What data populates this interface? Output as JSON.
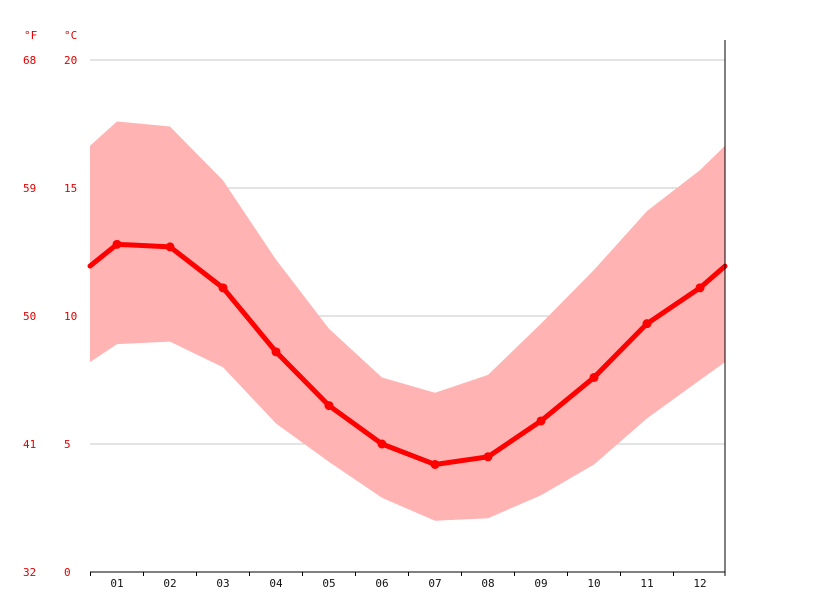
{
  "colors": {
    "temperature_line": "#ff0000",
    "range_band": "#ffb3b3",
    "gridline": "#c8c8c8",
    "axis": "#000000",
    "axis_text": "#e00000",
    "month_text": "#111111"
  },
  "chart_data": {
    "type": "line",
    "title": "",
    "xlabel": "",
    "ylabel": "",
    "unit_f": "°F",
    "unit_c": "°C",
    "categories": [
      "01",
      "02",
      "03",
      "04",
      "05",
      "06",
      "07",
      "08",
      "09",
      "10",
      "11",
      "12"
    ],
    "ylim": [
      0,
      20
    ],
    "grid": true,
    "yticks_c": [
      "0",
      "5",
      "10",
      "15",
      "20"
    ],
    "yticks_f": [
      "32",
      "41",
      "50",
      "59",
      "68"
    ],
    "series": [
      {
        "kind": "line",
        "values": [
          12.8,
          12.7,
          11.1,
          8.6,
          6.5,
          5.0,
          4.2,
          4.5,
          5.9,
          7.6,
          9.7,
          11.1
        ]
      },
      {
        "kind": "band-max",
        "values": [
          17.6,
          17.4,
          15.3,
          12.2,
          9.5,
          7.6,
          7.0,
          7.7,
          9.7,
          11.8,
          14.1,
          15.7
        ]
      },
      {
        "kind": "band-min",
        "values": [
          8.9,
          9.0,
          8.0,
          5.8,
          4.3,
          2.9,
          2.0,
          2.1,
          3.0,
          4.2,
          6.0,
          7.5
        ]
      }
    ]
  }
}
